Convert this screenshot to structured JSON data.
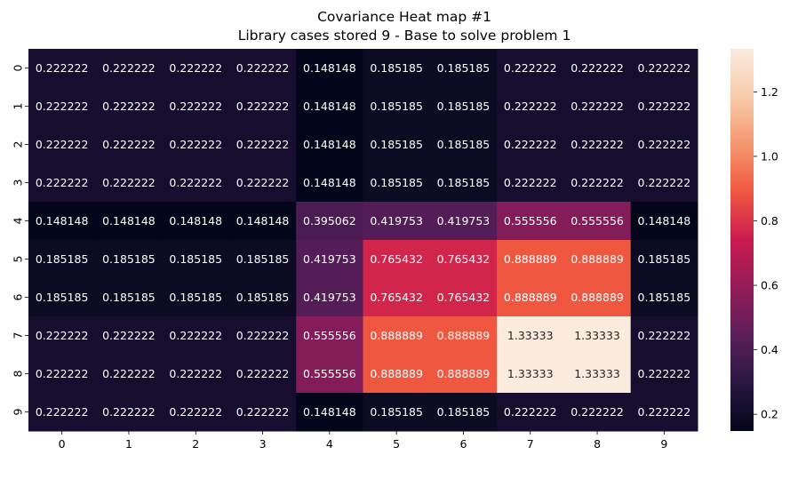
{
  "chart_data": {
    "type": "heatmap",
    "title": "Covariance Heat map #1",
    "subtitle": "Library cases stored 9 - Base to solve problem 1",
    "xlabel": "",
    "ylabel": "",
    "x_categories": [
      "0",
      "1",
      "2",
      "3",
      "4",
      "5",
      "6",
      "7",
      "8",
      "9"
    ],
    "y_categories": [
      "0",
      "1",
      "2",
      "3",
      "4",
      "5",
      "6",
      "7",
      "8",
      "9"
    ],
    "values": [
      [
        0.222222,
        0.222222,
        0.222222,
        0.222222,
        0.148148,
        0.185185,
        0.185185,
        0.222222,
        0.222222,
        0.222222
      ],
      [
        0.222222,
        0.222222,
        0.222222,
        0.222222,
        0.148148,
        0.185185,
        0.185185,
        0.222222,
        0.222222,
        0.222222
      ],
      [
        0.222222,
        0.222222,
        0.222222,
        0.222222,
        0.148148,
        0.185185,
        0.185185,
        0.222222,
        0.222222,
        0.222222
      ],
      [
        0.222222,
        0.222222,
        0.222222,
        0.222222,
        0.148148,
        0.185185,
        0.185185,
        0.222222,
        0.222222,
        0.222222
      ],
      [
        0.148148,
        0.148148,
        0.148148,
        0.148148,
        0.395062,
        0.419753,
        0.419753,
        0.555556,
        0.555556,
        0.148148
      ],
      [
        0.185185,
        0.185185,
        0.185185,
        0.185185,
        0.419753,
        0.765432,
        0.765432,
        0.888889,
        0.888889,
        0.185185
      ],
      [
        0.185185,
        0.185185,
        0.185185,
        0.185185,
        0.419753,
        0.765432,
        0.765432,
        0.888889,
        0.888889,
        0.185185
      ],
      [
        0.222222,
        0.222222,
        0.222222,
        0.222222,
        0.555556,
        0.888889,
        0.888889,
        1.33333,
        1.33333,
        0.222222
      ],
      [
        0.222222,
        0.222222,
        0.222222,
        0.222222,
        0.555556,
        0.888889,
        0.888889,
        1.33333,
        1.33333,
        0.222222
      ],
      [
        0.222222,
        0.222222,
        0.222222,
        0.222222,
        0.148148,
        0.185185,
        0.185185,
        0.222222,
        0.222222,
        0.222222
      ]
    ],
    "labels": [
      [
        "0.222222",
        "0.222222",
        "0.222222",
        "0.222222",
        "0.148148",
        "0.185185",
        "0.185185",
        "0.222222",
        "0.222222",
        "0.222222"
      ],
      [
        "0.222222",
        "0.222222",
        "0.222222",
        "0.222222",
        "0.148148",
        "0.185185",
        "0.185185",
        "0.222222",
        "0.222222",
        "0.222222"
      ],
      [
        "0.222222",
        "0.222222",
        "0.222222",
        "0.222222",
        "0.148148",
        "0.185185",
        "0.185185",
        "0.222222",
        "0.222222",
        "0.222222"
      ],
      [
        "0.222222",
        "0.222222",
        "0.222222",
        "0.222222",
        "0.148148",
        "0.185185",
        "0.185185",
        "0.222222",
        "0.222222",
        "0.222222"
      ],
      [
        "0.148148",
        "0.148148",
        "0.148148",
        "0.148148",
        "0.395062",
        "0.419753",
        "0.419753",
        "0.555556",
        "0.555556",
        "0.148148"
      ],
      [
        "0.185185",
        "0.185185",
        "0.185185",
        "0.185185",
        "0.419753",
        "0.765432",
        "0.765432",
        "0.888889",
        "0.888889",
        "0.185185"
      ],
      [
        "0.185185",
        "0.185185",
        "0.185185",
        "0.185185",
        "0.419753",
        "0.765432",
        "0.765432",
        "0.888889",
        "0.888889",
        "0.185185"
      ],
      [
        "0.222222",
        "0.222222",
        "0.222222",
        "0.222222",
        "0.555556",
        "0.888889",
        "0.888889",
        "1.33333",
        "1.33333",
        "0.222222"
      ],
      [
        "0.222222",
        "0.222222",
        "0.222222",
        "0.222222",
        "0.555556",
        "0.888889",
        "0.888889",
        "1.33333",
        "1.33333",
        "0.222222"
      ],
      [
        "0.222222",
        "0.222222",
        "0.222222",
        "0.222222",
        "0.148148",
        "0.185185",
        "0.185185",
        "0.222222",
        "0.222222",
        "0.222222"
      ]
    ],
    "colorbar": {
      "range": [
        0.148148,
        1.33333
      ],
      "ticks": [
        0.2,
        0.4,
        0.6,
        0.8,
        1.0,
        1.2
      ],
      "tick_labels": [
        "0.2",
        "0.4",
        "0.6",
        "0.8",
        "1.0",
        "1.2"
      ],
      "colormap": "rocket",
      "colormap_stops": [
        "#03051a",
        "#2a1743",
        "#5c1e5b",
        "#931c5a",
        "#cb1b4f",
        "#ef5740",
        "#f5976f",
        "#f8cbaa",
        "#faebdd"
      ]
    },
    "label_colors": {
      "light": "#ffffff",
      "dark": "#262626"
    },
    "grid": false
  }
}
